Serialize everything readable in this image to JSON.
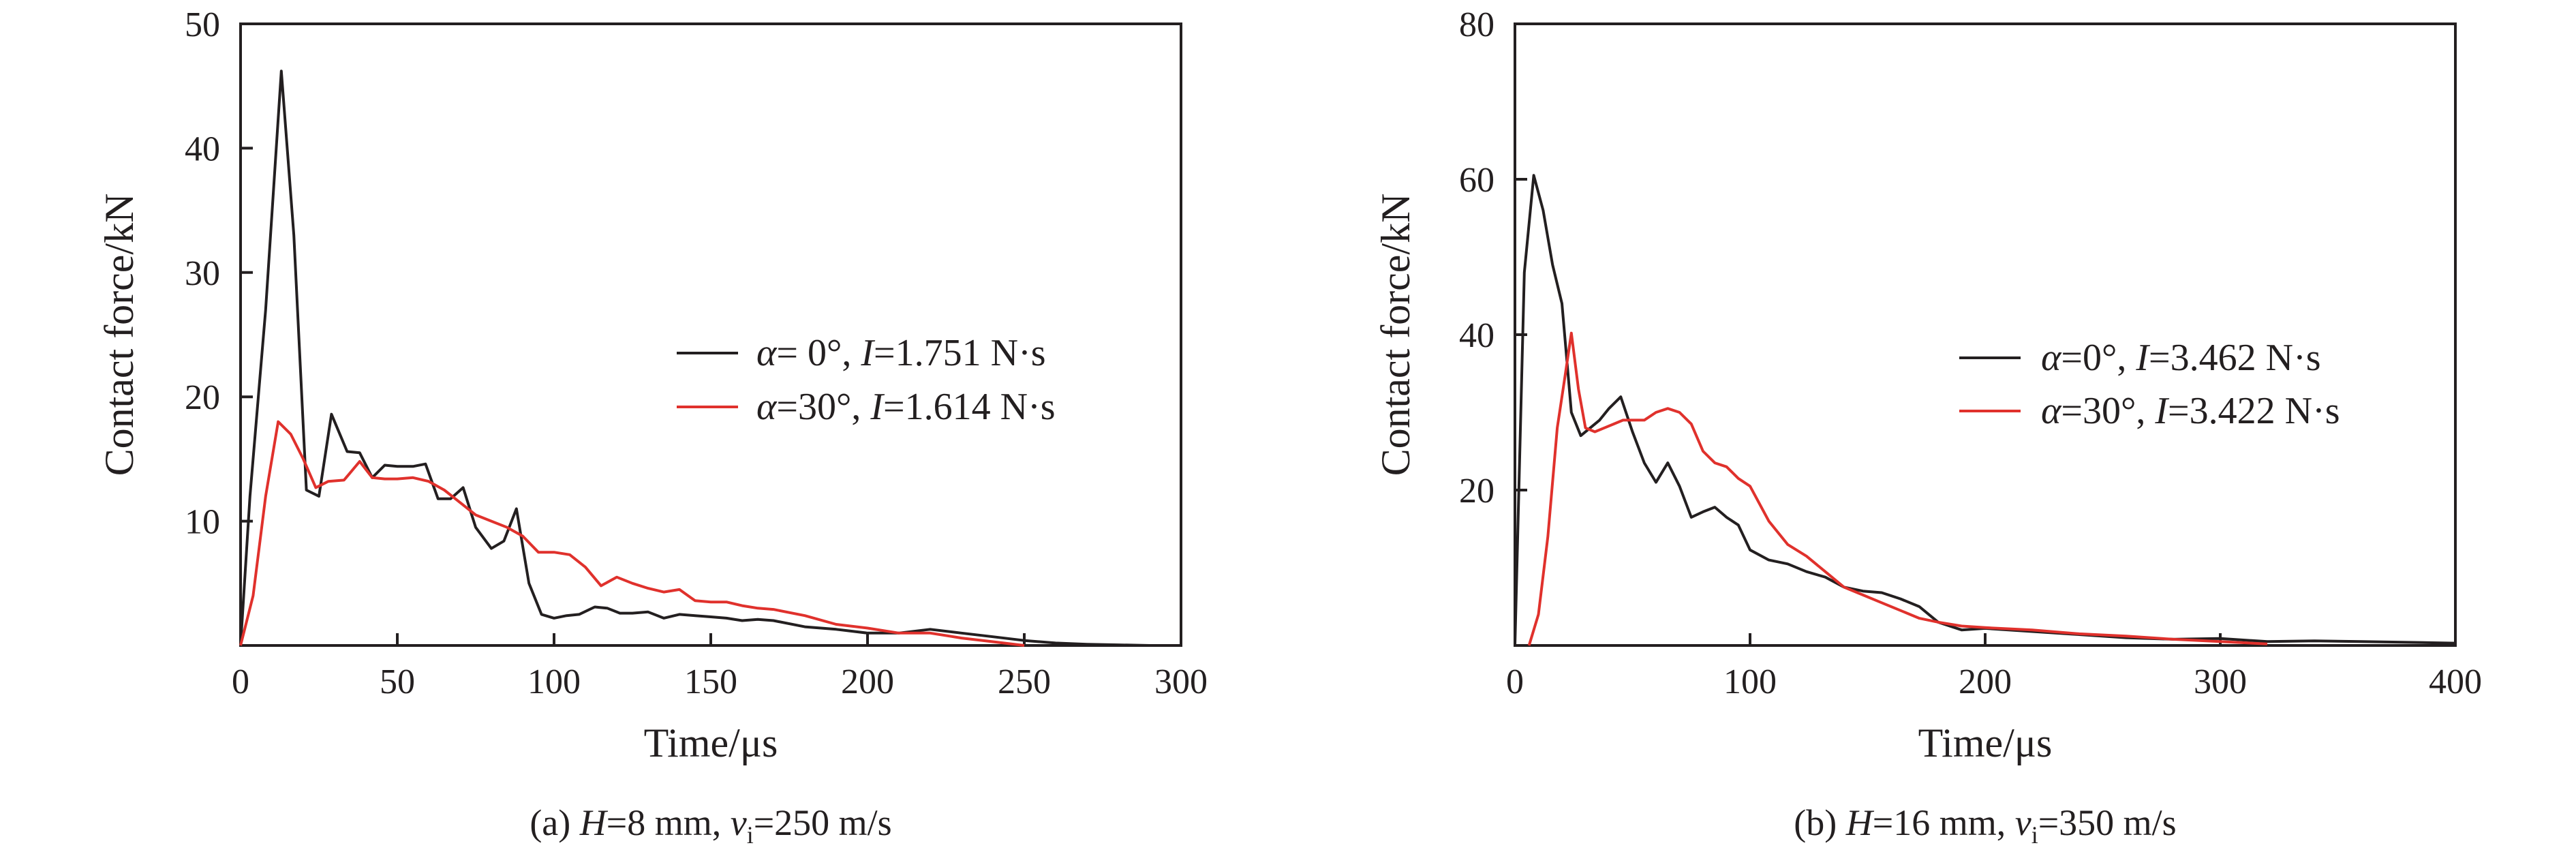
{
  "chart_data": [
    {
      "type": "line",
      "panel": "a",
      "caption": {
        "prefix": "(a) ",
        "H_symbol": "H",
        "H_text": "=8 mm, ",
        "v_symbol": "v",
        "v_sub": "i",
        "v_text": "=250 m/s"
      },
      "xlabel": "Time/μs",
      "ylabel": "Contact force/kN",
      "xlim": [
        0,
        300
      ],
      "ylim": [
        0,
        50
      ],
      "xticks": [
        0,
        50,
        100,
        150,
        200,
        250,
        300
      ],
      "yticks": [
        10,
        20,
        30,
        40,
        50
      ],
      "legend_position": "center-right",
      "series": [
        {
          "name": "α= 0°, I=1.751 N·s",
          "legend_alpha": "α",
          "legend_mid": "= 0°, ",
          "legend_I": "I",
          "legend_tail": "=1.751 N·s",
          "color": "#231f20",
          "x": [
            0,
            3,
            8,
            13,
            17,
            21,
            25,
            29,
            34,
            38,
            42,
            46,
            50,
            55,
            59,
            63,
            67,
            71,
            75,
            80,
            84,
            88,
            92,
            96,
            100,
            104,
            108,
            113,
            117,
            121,
            125,
            130,
            135,
            140,
            145,
            150,
            155,
            160,
            165,
            170,
            180,
            190,
            200,
            210,
            220,
            230,
            240,
            250,
            260,
            270,
            280,
            290,
            300
          ],
          "y": [
            0,
            12,
            27,
            46.2,
            33,
            12.5,
            12,
            18.6,
            15.6,
            15.5,
            13.5,
            14.5,
            14.4,
            14.4,
            14.6,
            11.8,
            11.8,
            12.7,
            9.5,
            7.8,
            8.4,
            11,
            5,
            2.5,
            2.2,
            2.4,
            2.5,
            3.1,
            3.0,
            2.6,
            2.6,
            2.7,
            2.2,
            2.5,
            2.4,
            2.3,
            2.2,
            2.0,
            2.1,
            2.0,
            1.5,
            1.3,
            1.0,
            1.0,
            1.3,
            1.0,
            0.7,
            0.4,
            0.2,
            0.1,
            0.05,
            0,
            0
          ]
        },
        {
          "name": "α=30°, I=1.614 N·s",
          "legend_alpha": "α",
          "legend_mid": "=30°, ",
          "legend_I": "I",
          "legend_tail": "=1.614 N·s",
          "color": "#e0312c",
          "x": [
            0,
            4,
            8,
            12,
            16,
            20,
            24,
            28,
            33,
            38,
            42,
            46,
            50,
            55,
            60,
            65,
            70,
            75,
            80,
            85,
            90,
            95,
            100,
            105,
            110,
            115,
            120,
            125,
            130,
            135,
            140,
            145,
            150,
            155,
            160,
            165,
            170,
            180,
            190,
            200,
            210,
            220,
            230,
            240,
            250
          ],
          "y": [
            0,
            4,
            12,
            18,
            17,
            15,
            12.7,
            13.2,
            13.3,
            14.8,
            13.5,
            13.4,
            13.4,
            13.5,
            13.2,
            12.5,
            11.5,
            10.5,
            10,
            9.5,
            8.8,
            7.5,
            7.5,
            7.3,
            6.3,
            4.8,
            5.5,
            5.0,
            4.6,
            4.3,
            4.5,
            3.6,
            3.5,
            3.5,
            3.2,
            3.0,
            2.9,
            2.4,
            1.7,
            1.4,
            1.0,
            1.0,
            0.6,
            0.3,
            0.0
          ]
        }
      ]
    },
    {
      "type": "line",
      "panel": "b",
      "caption": {
        "prefix": "(b) ",
        "H_symbol": "H",
        "H_text": "=16 mm, ",
        "v_symbol": "v",
        "v_sub": "i",
        "v_text": "=350 m/s"
      },
      "xlabel": "Time/μs",
      "ylabel": "Contact force/kN",
      "xlim": [
        0,
        400
      ],
      "ylim": [
        0,
        80
      ],
      "xticks": [
        0,
        100,
        200,
        300,
        400
      ],
      "yticks": [
        20,
        40,
        60,
        80
      ],
      "legend_position": "center-right",
      "series": [
        {
          "name": "α=0°, I=3.462 N·s",
          "legend_alpha": "α",
          "legend_mid": "=0°, ",
          "legend_I": "I",
          "legend_tail": "=3.462 N·s",
          "color": "#231f20",
          "x": [
            0,
            4,
            8,
            12,
            16,
            20,
            24,
            28,
            32,
            36,
            40,
            45,
            50,
            55,
            60,
            65,
            70,
            75,
            80,
            85,
            90,
            95,
            100,
            108,
            116,
            124,
            132,
            140,
            148,
            156,
            164,
            172,
            180,
            190,
            200,
            220,
            240,
            260,
            280,
            300,
            320,
            340,
            360,
            380,
            400
          ],
          "y": [
            0,
            48,
            60.5,
            56,
            49,
            44,
            30,
            27,
            28,
            29,
            30.5,
            32,
            27.5,
            23.5,
            21,
            23.5,
            20.5,
            16.5,
            17.2,
            17.8,
            16.5,
            15.5,
            12.3,
            11,
            10.5,
            9.5,
            8.8,
            7.5,
            7.0,
            6.8,
            6.0,
            5.0,
            3.0,
            2.0,
            2.2,
            1.8,
            1.4,
            1.0,
            0.8,
            0.9,
            0.5,
            0.6,
            0.5,
            0.4,
            0.3
          ]
        },
        {
          "name": "α=30°, I=3.422 N·s",
          "legend_alpha": "α",
          "legend_mid": "=30°, ",
          "legend_I": "I",
          "legend_tail": "=3.422 N·s",
          "color": "#e0312c",
          "x": [
            6,
            10,
            14,
            18,
            21,
            24,
            27,
            30,
            34,
            38,
            42,
            46,
            50,
            55,
            60,
            65,
            70,
            75,
            80,
            85,
            90,
            95,
            100,
            108,
            116,
            124,
            132,
            140,
            148,
            156,
            164,
            172,
            180,
            190,
            200,
            220,
            240,
            260,
            280,
            300,
            320
          ],
          "y": [
            0,
            4,
            14,
            28,
            34,
            40.2,
            33,
            28,
            27.5,
            28,
            28.5,
            29,
            29,
            29,
            30,
            30.5,
            30,
            28.5,
            25,
            23.5,
            23,
            21.5,
            20.5,
            16,
            13,
            11.5,
            9.5,
            7.5,
            6.5,
            5.5,
            4.5,
            3.5,
            3.0,
            2.5,
            2.3,
            2.0,
            1.5,
            1.2,
            0.8,
            0.5,
            0.2
          ]
        }
      ]
    }
  ]
}
